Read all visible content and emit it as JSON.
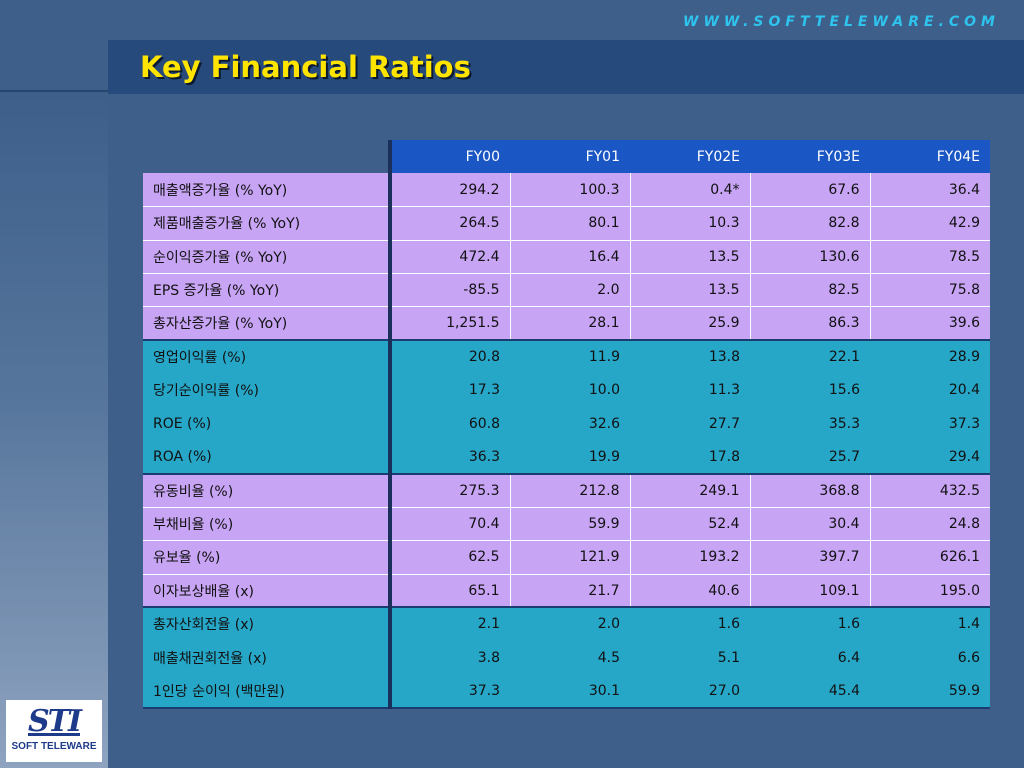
{
  "header": {
    "url": "WWW.SOFTTELEWARE.COM",
    "title": "Key Financial Ratios"
  },
  "table": {
    "columns": [
      "FY00",
      "FY01",
      "FY02E",
      "FY03E",
      "FY04E"
    ],
    "groups": [
      {
        "color": "#c8a4f5",
        "rows": [
          {
            "label": "매출액증가율 (% YoY)",
            "values": [
              "294.2",
              "100.3",
              "0.4*",
              "67.6",
              "36.4"
            ]
          },
          {
            "label": "제품매출증가율 (% YoY)",
            "values": [
              "264.5",
              "80.1",
              "10.3",
              "82.8",
              "42.9"
            ]
          },
          {
            "label": "순이익증가율 (% YoY)",
            "values": [
              "472.4",
              "16.4",
              "13.5",
              "130.6",
              "78.5"
            ]
          },
          {
            "label": "EPS 증가율 (% YoY)",
            "values": [
              "-85.5",
              "2.0",
              "13.5",
              "82.5",
              "75.8"
            ]
          },
          {
            "label": "총자산증가율 (% YoY)",
            "values": [
              "1,251.5",
              "28.1",
              "25.9",
              "86.3",
              "39.6"
            ]
          }
        ]
      },
      {
        "color": "#26a7c8",
        "rows": [
          {
            "label": "영업이익률 (%)",
            "values": [
              "20.8",
              "11.9",
              "13.8",
              "22.1",
              "28.9"
            ]
          },
          {
            "label": "당기순이익률 (%)",
            "values": [
              "17.3",
              "10.0",
              "11.3",
              "15.6",
              "20.4"
            ]
          },
          {
            "label": "ROE (%)",
            "values": [
              "60.8",
              "32.6",
              "27.7",
              "35.3",
              "37.3"
            ]
          },
          {
            "label": "ROA (%)",
            "values": [
              "36.3",
              "19.9",
              "17.8",
              "25.7",
              "29.4"
            ]
          }
        ]
      },
      {
        "color": "#c8a4f5",
        "rows": [
          {
            "label": "유동비율 (%)",
            "values": [
              "275.3",
              "212.8",
              "249.1",
              "368.8",
              "432.5"
            ]
          },
          {
            "label": "부채비율 (%)",
            "values": [
              "70.4",
              "59.9",
              "52.4",
              "30.4",
              "24.8"
            ]
          },
          {
            "label": "유보율 (%)",
            "values": [
              "62.5",
              "121.9",
              "193.2",
              "397.7",
              "626.1"
            ]
          },
          {
            "label": "이자보상배율 (x)",
            "values": [
              "65.1",
              "21.7",
              "40.6",
              "109.1",
              "195.0"
            ]
          }
        ]
      },
      {
        "color": "#26a7c8",
        "rows": [
          {
            "label": "총자산회전율 (x)",
            "values": [
              "2.1",
              "2.0",
              "1.6",
              "1.6",
              "1.4"
            ]
          },
          {
            "label": "매출채권회전율 (x)",
            "values": [
              "3.8",
              "4.5",
              "5.1",
              "6.4",
              "6.6"
            ]
          },
          {
            "label": "1인당 순이익 (백만원)",
            "values": [
              "37.3",
              "30.1",
              "27.0",
              "45.4",
              "59.9"
            ]
          }
        ]
      }
    ]
  },
  "logo": {
    "mark": "STI",
    "text": "SOFT TELEWARE"
  }
}
